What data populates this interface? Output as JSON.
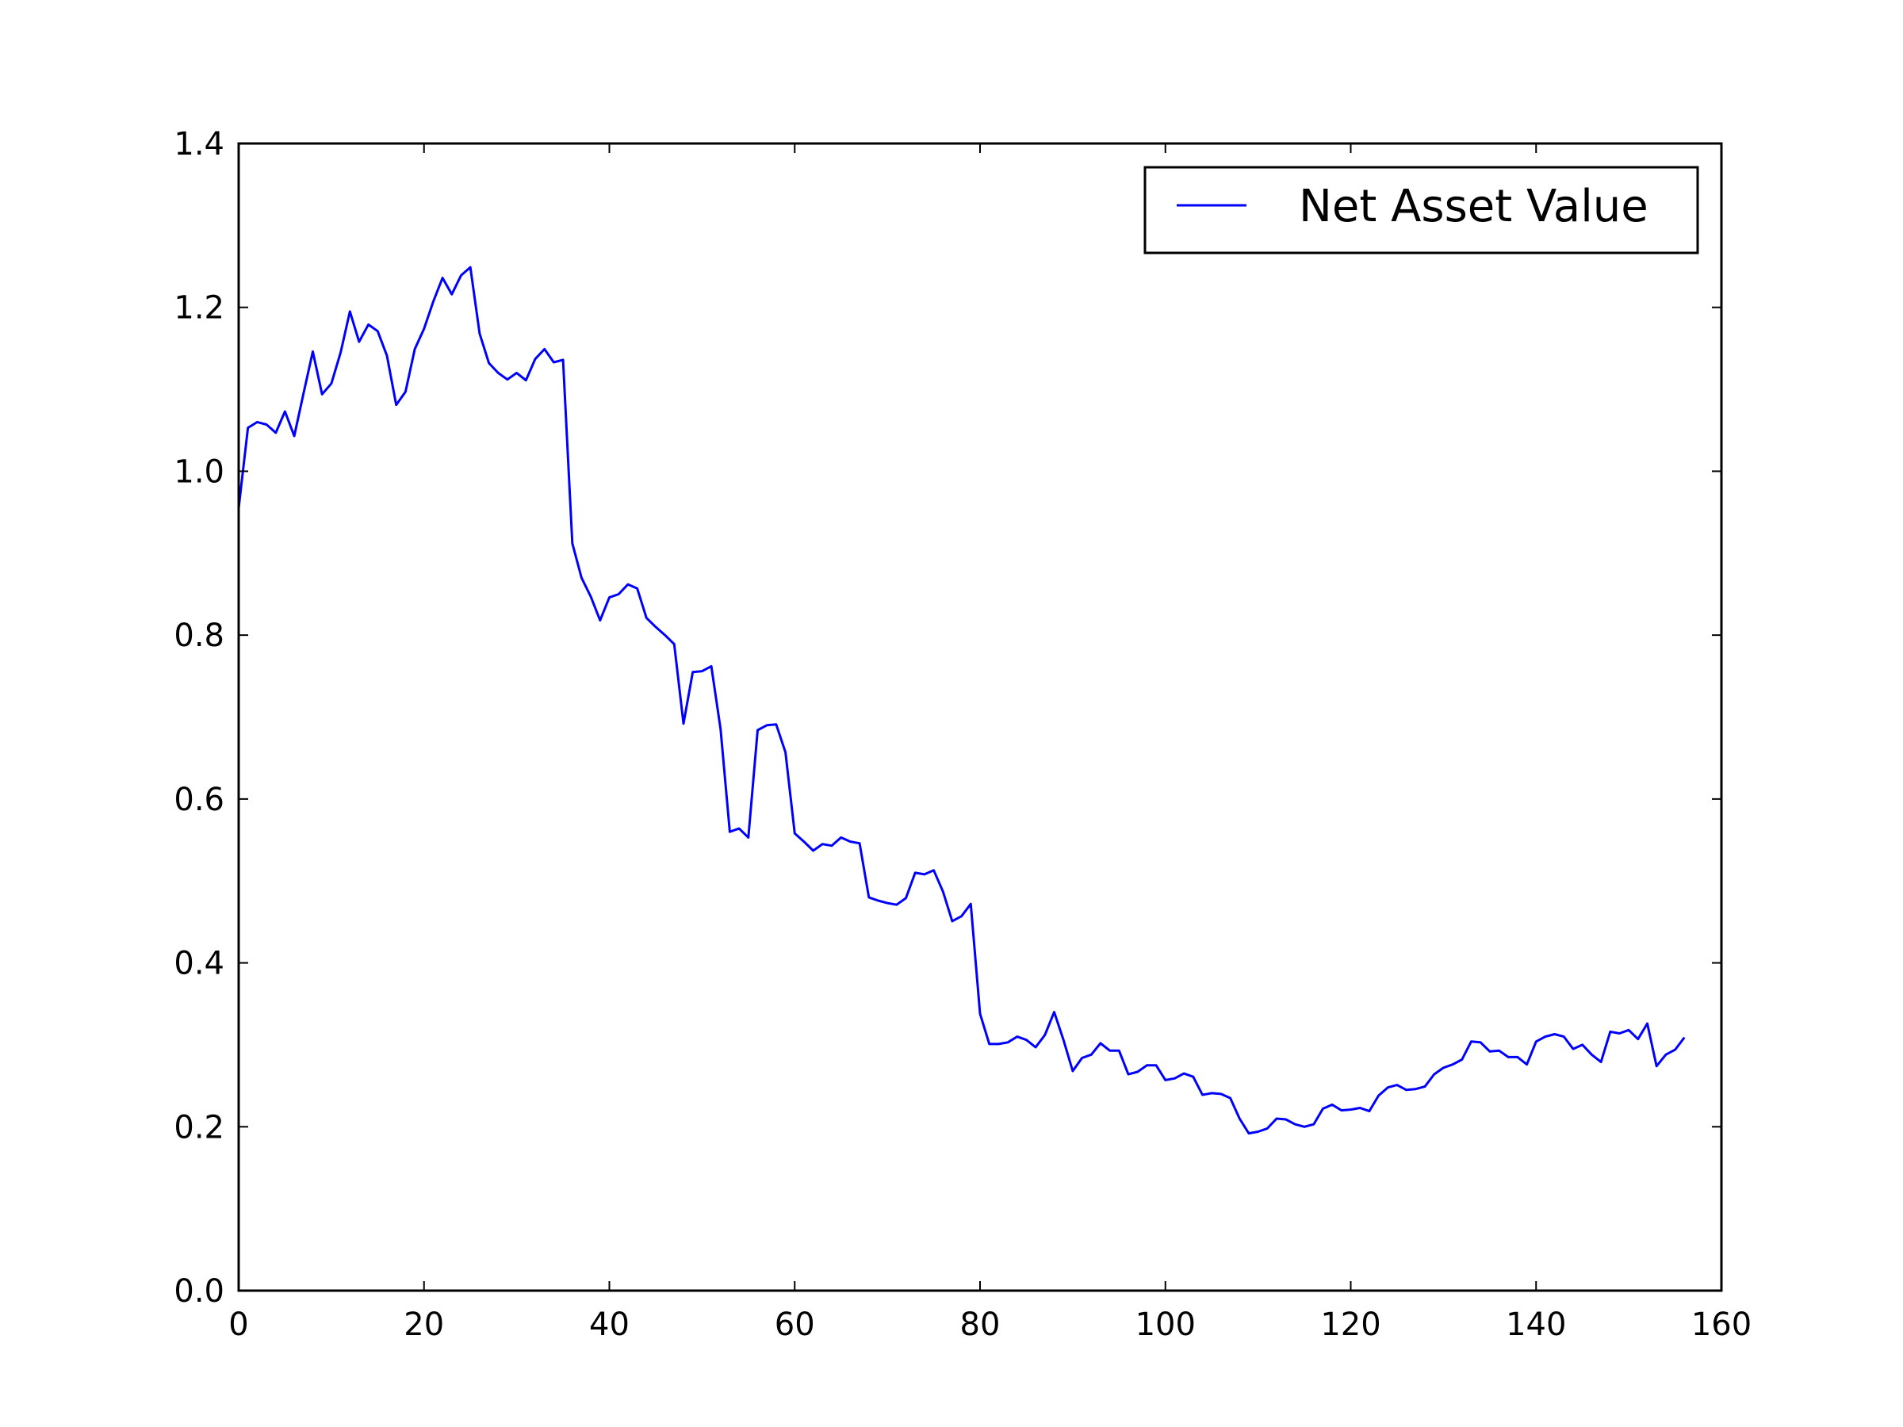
{
  "chart_data": {
    "type": "line",
    "title": "",
    "xlabel": "",
    "ylabel": "",
    "xlim": [
      0,
      160
    ],
    "ylim": [
      0.0,
      1.4
    ],
    "xticks": [
      "0",
      "20",
      "40",
      "60",
      "80",
      "100",
      "120",
      "140",
      "160"
    ],
    "yticks": [
      "0.0",
      "0.2",
      "0.4",
      "0.6",
      "0.8",
      "1.0",
      "1.2",
      "1.4"
    ],
    "grid": false,
    "legend_position": "top-right",
    "series": [
      {
        "name": "Net Asset Value",
        "color": "#0000ff",
        "x": [
          0,
          1,
          2,
          3,
          4,
          5,
          6,
          7,
          8,
          9,
          10,
          11,
          12,
          13,
          14,
          15,
          16,
          17,
          18,
          19,
          20,
          21,
          22,
          23,
          24,
          25,
          26,
          27,
          28,
          29,
          30,
          31,
          32,
          33,
          34,
          35,
          36,
          37,
          38,
          39,
          40,
          41,
          42,
          43,
          44,
          45,
          46,
          47,
          48,
          49,
          50,
          51,
          52,
          53,
          54,
          55,
          56,
          57,
          58,
          59,
          60,
          61,
          62,
          63,
          64,
          65,
          66,
          67,
          68,
          69,
          70,
          71,
          72,
          73,
          74,
          75,
          76,
          77,
          78,
          79,
          80,
          81,
          82,
          83,
          84,
          85,
          86,
          87,
          88,
          89,
          90,
          91,
          92,
          93,
          94,
          95,
          96,
          97,
          98,
          99,
          100,
          101,
          102,
          103,
          104,
          105,
          106,
          107,
          108,
          109,
          110,
          111,
          112,
          113,
          114,
          115,
          116,
          117,
          118,
          119,
          120,
          121,
          122,
          123,
          124,
          125,
          126,
          127,
          128,
          129,
          130,
          131,
          132,
          133,
          134,
          135,
          136,
          137,
          138,
          139,
          140,
          141,
          142,
          143,
          144,
          145,
          146,
          147,
          148,
          149,
          150,
          151,
          152,
          153,
          154,
          155,
          156
        ],
        "values": [
          0.955,
          1.053,
          1.06,
          1.057,
          1.047,
          1.073,
          1.043,
          1.095,
          1.146,
          1.094,
          1.107,
          1.145,
          1.195,
          1.158,
          1.179,
          1.171,
          1.141,
          1.081,
          1.097,
          1.149,
          1.174,
          1.207,
          1.236,
          1.216,
          1.239,
          1.249,
          1.168,
          1.132,
          1.12,
          1.112,
          1.12,
          1.111,
          1.137,
          1.149,
          1.133,
          1.136,
          0.912,
          0.87,
          0.847,
          0.818,
          0.846,
          0.85,
          0.862,
          0.857,
          0.821,
          0.81,
          0.8,
          0.789,
          0.692,
          0.755,
          0.756,
          0.762,
          0.685,
          0.56,
          0.564,
          0.553,
          0.684,
          0.69,
          0.691,
          0.657,
          0.558,
          0.548,
          0.537,
          0.545,
          0.543,
          0.553,
          0.548,
          0.546,
          0.48,
          0.476,
          0.473,
          0.471,
          0.479,
          0.51,
          0.508,
          0.513,
          0.487,
          0.451,
          0.457,
          0.472,
          0.338,
          0.301,
          0.301,
          0.303,
          0.31,
          0.306,
          0.297,
          0.312,
          0.34,
          0.306,
          0.268,
          0.284,
          0.288,
          0.302,
          0.293,
          0.293,
          0.264,
          0.267,
          0.275,
          0.275,
          0.257,
          0.259,
          0.265,
          0.261,
          0.239,
          0.241,
          0.24,
          0.235,
          0.21,
          0.192,
          0.194,
          0.198,
          0.21,
          0.209,
          0.203,
          0.2,
          0.203,
          0.222,
          0.227,
          0.22,
          0.221,
          0.223,
          0.219,
          0.238,
          0.248,
          0.251,
          0.245,
          0.246,
          0.249,
          0.264,
          0.272,
          0.276,
          0.282,
          0.304,
          0.303,
          0.292,
          0.293,
          0.285,
          0.285,
          0.276,
          0.304,
          0.31,
          0.313,
          0.31,
          0.295,
          0.3,
          0.288,
          0.279,
          0.316,
          0.314,
          0.318,
          0.307,
          0.326,
          0.274,
          0.288,
          0.294,
          0.309
        ]
      }
    ]
  }
}
